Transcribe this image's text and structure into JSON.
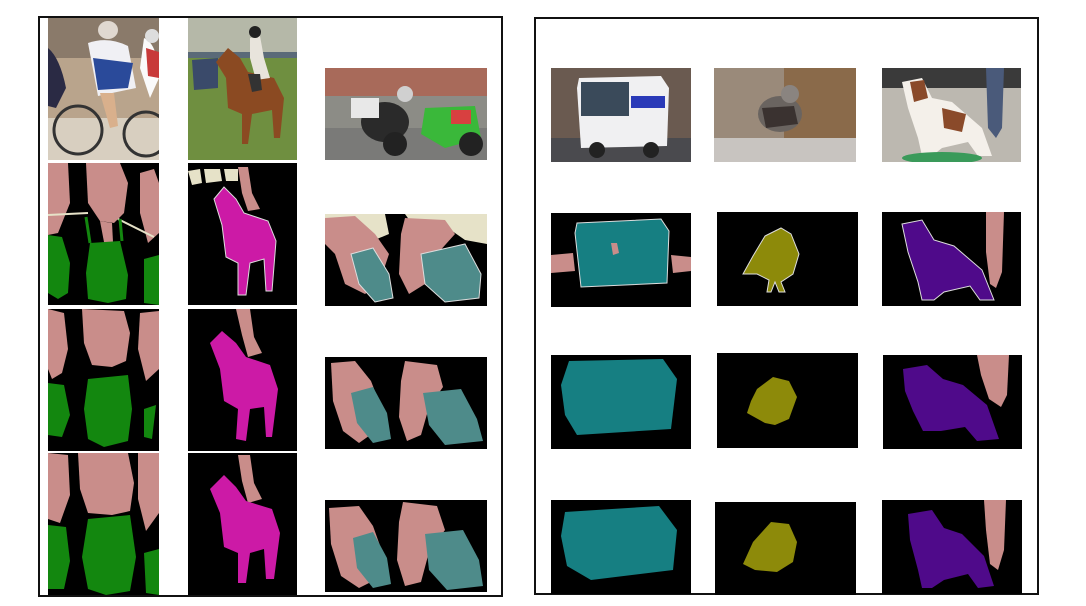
{
  "figure": {
    "row_types": [
      "input-image",
      "ground-truth",
      "prediction-a",
      "prediction-b"
    ],
    "palette": {
      "background": "#000000",
      "person": "#c98d8a",
      "bicycle": "#13870f",
      "horse": "#cc1aa6",
      "motorbike": "#4e8b8a",
      "bus": "#167f82",
      "bird": "#8d8a0a",
      "dog": "#4f0a8a",
      "void": "#e6e2c8"
    },
    "left_panel": {
      "columns": [
        {
          "scene": "cyclists-on-track",
          "classes": [
            "person",
            "bicycle"
          ]
        },
        {
          "scene": "rider-on-horse",
          "classes": [
            "person",
            "horse"
          ]
        },
        {
          "scene": "motorbike-racers",
          "classes": [
            "person",
            "motorbike"
          ]
        }
      ]
    },
    "right_panel": {
      "columns": [
        {
          "scene": "city-bus",
          "classes": [
            "bus",
            "person"
          ]
        },
        {
          "scene": "partridge-bird",
          "classes": [
            "bird"
          ]
        },
        {
          "scene": "dog-and-person-legs",
          "classes": [
            "dog",
            "person"
          ]
        }
      ]
    }
  }
}
